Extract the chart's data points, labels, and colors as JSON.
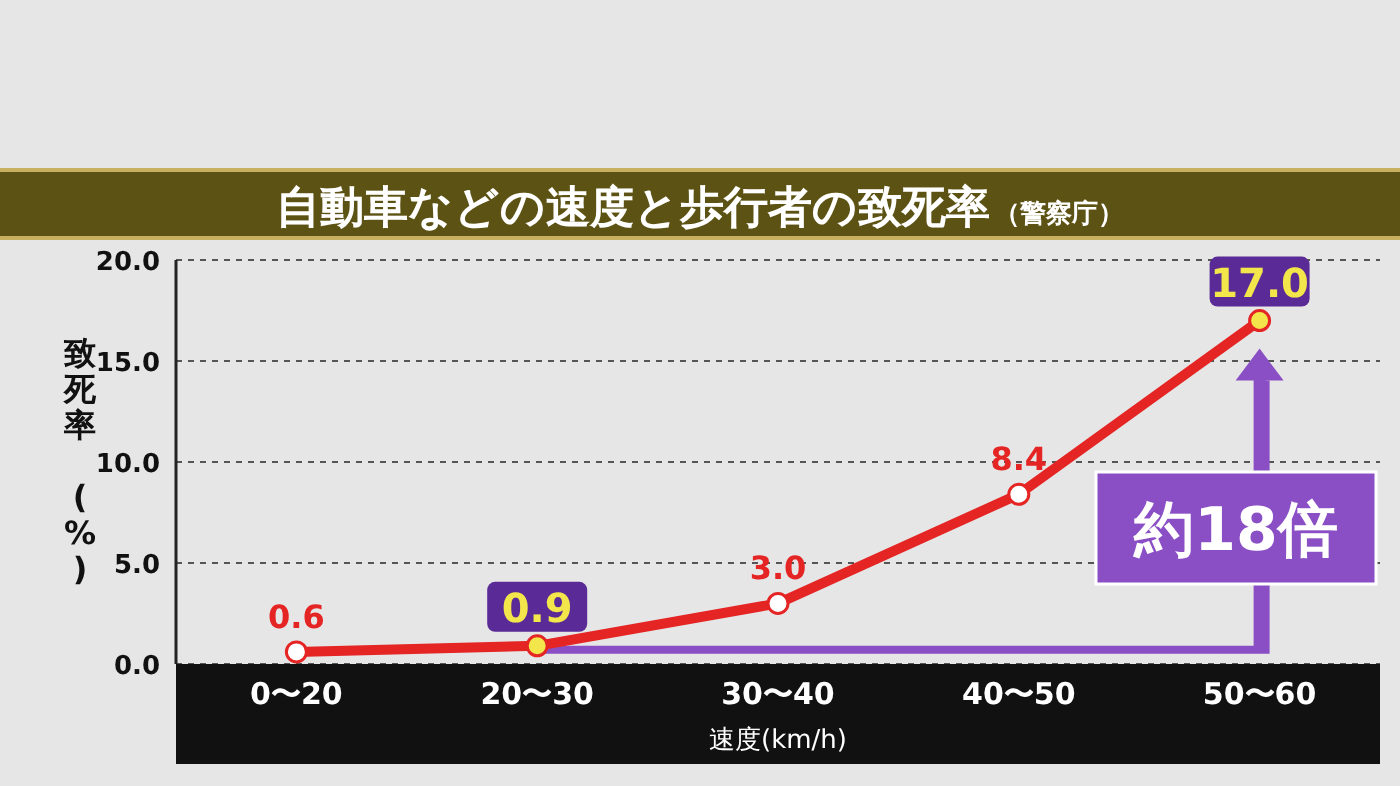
{
  "chart_data": {
    "type": "line",
    "title": "自動車などの速度と歩行者の致死率",
    "subtitle": "（警察庁）",
    "xlabel": "速度(km/h)",
    "ylabel": "致死率 (%)",
    "categories": [
      "0〜20",
      "20〜30",
      "30〜40",
      "40〜50",
      "50〜60"
    ],
    "series": [
      {
        "color": "#e52424",
        "colors": [
          "#ffffff",
          "#f2e64a",
          "#ffffff",
          "#ffffff",
          "#f2e64a"
        ],
        "values": [
          0.6,
          0.9,
          3.0,
          8.4,
          17.0
        ],
        "value_labels": [
          "0.6",
          "0.9",
          "3.0",
          "8.4",
          "17.0"
        ]
      }
    ],
    "ylim": [
      0,
      20
    ],
    "yticks": [
      {
        "value": 0,
        "label": "0.0"
      },
      {
        "value": 5,
        "label": "5.0"
      },
      {
        "value": 10,
        "label": "10.0"
      },
      {
        "value": 15,
        "label": "15.0"
      },
      {
        "value": 20,
        "label": "20.0"
      }
    ],
    "grid": "y",
    "marker": "circle",
    "line_style": "solid",
    "annotations": [
      "約18倍"
    ]
  }
}
